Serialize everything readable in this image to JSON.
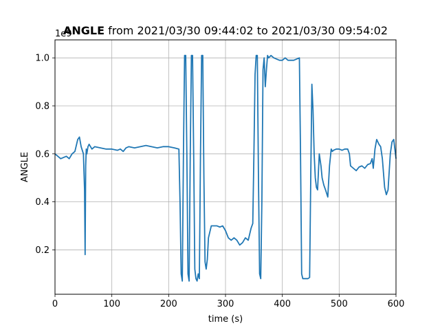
{
  "chart_data": {
    "type": "line",
    "title_bold": "ANGLE",
    "title_rest": " from 2021/03/30 09:44:02 to 2021/03/30 09:54:02",
    "xlabel": "time (s)",
    "ylabel": "ANGLE",
    "y_offset_label": "1e9",
    "xlim": [
      0,
      600
    ],
    "ylim": [
      0.015,
      1.075
    ],
    "x_ticks": [
      0,
      100,
      200,
      300,
      400,
      500,
      600
    ],
    "x_tick_labels": [
      "0",
      "100",
      "200",
      "300",
      "400",
      "500",
      "600"
    ],
    "y_ticks": [
      0.2,
      0.4,
      0.6,
      0.8,
      1.0
    ],
    "y_tick_labels": [
      "0.2",
      "0.4",
      "0.6",
      "0.8",
      "1.0"
    ],
    "grid": true,
    "line_color": "#1f77b4",
    "series": [
      {
        "x": [
          0,
          5,
          10,
          15,
          20,
          25,
          30,
          35,
          40,
          43,
          46,
          50,
          52,
          53,
          54,
          55,
          56,
          58,
          60,
          65,
          70,
          80,
          90,
          100,
          110,
          115,
          120,
          125,
          130,
          140,
          150,
          160,
          170,
          180,
          190,
          200,
          210,
          218,
          220,
          222,
          224,
          226,
          228,
          230,
          232,
          234,
          236,
          238,
          240,
          242,
          244,
          246,
          248,
          250,
          252,
          254,
          256,
          258,
          260,
          262,
          264,
          266,
          268,
          270,
          275,
          280,
          285,
          290,
          295,
          300,
          305,
          310,
          315,
          320,
          325,
          330,
          335,
          340,
          345,
          348,
          350,
          352,
          354,
          356,
          358,
          360,
          362,
          364,
          366,
          368,
          370,
          372,
          374,
          376,
          380,
          385,
          390,
          395,
          400,
          405,
          410,
          415,
          420,
          425,
          430,
          432,
          434,
          436,
          440,
          445,
          448,
          450,
          452,
          454,
          456,
          458,
          460,
          462,
          465,
          468,
          470,
          473,
          476,
          480,
          483,
          486,
          488,
          490,
          495,
          500,
          505,
          510,
          515,
          518,
          520,
          525,
          530,
          535,
          540,
          545,
          550,
          555,
          558,
          560,
          563,
          566,
          570,
          573,
          576,
          580,
          583,
          586,
          590,
          593,
          596,
          600
        ],
        "values": [
          0.6,
          0.59,
          0.58,
          0.585,
          0.59,
          0.58,
          0.6,
          0.61,
          0.66,
          0.67,
          0.63,
          0.6,
          0.45,
          0.18,
          0.55,
          0.62,
          0.6,
          0.63,
          0.64,
          0.62,
          0.63,
          0.625,
          0.62,
          0.62,
          0.615,
          0.62,
          0.61,
          0.625,
          0.63,
          0.625,
          0.63,
          0.635,
          0.63,
          0.625,
          0.63,
          0.63,
          0.625,
          0.62,
          0.4,
          0.1,
          0.07,
          0.6,
          1.01,
          1.01,
          0.6,
          0.1,
          0.07,
          0.6,
          1.01,
          1.01,
          0.6,
          0.12,
          0.08,
          0.07,
          0.1,
          0.08,
          0.6,
          1.01,
          1.01,
          0.5,
          0.15,
          0.12,
          0.16,
          0.25,
          0.3,
          0.3,
          0.3,
          0.295,
          0.3,
          0.28,
          0.25,
          0.24,
          0.25,
          0.24,
          0.22,
          0.23,
          0.25,
          0.24,
          0.29,
          0.31,
          0.6,
          0.93,
          1.01,
          1.01,
          0.5,
          0.1,
          0.08,
          0.4,
          0.95,
          1.0,
          0.88,
          0.95,
          1.01,
          1.0,
          1.01,
          1.0,
          0.995,
          0.99,
          0.99,
          1.0,
          0.99,
          0.99,
          0.99,
          0.995,
          1.0,
          0.6,
          0.1,
          0.08,
          0.08,
          0.08,
          0.085,
          0.5,
          0.89,
          0.78,
          0.6,
          0.5,
          0.46,
          0.45,
          0.6,
          0.55,
          0.5,
          0.47,
          0.45,
          0.42,
          0.55,
          0.62,
          0.61,
          0.615,
          0.62,
          0.62,
          0.615,
          0.62,
          0.62,
          0.6,
          0.55,
          0.54,
          0.53,
          0.545,
          0.55,
          0.54,
          0.555,
          0.56,
          0.58,
          0.54,
          0.62,
          0.66,
          0.64,
          0.63,
          0.58,
          0.46,
          0.43,
          0.45,
          0.6,
          0.65,
          0.66,
          0.58
        ]
      }
    ]
  }
}
